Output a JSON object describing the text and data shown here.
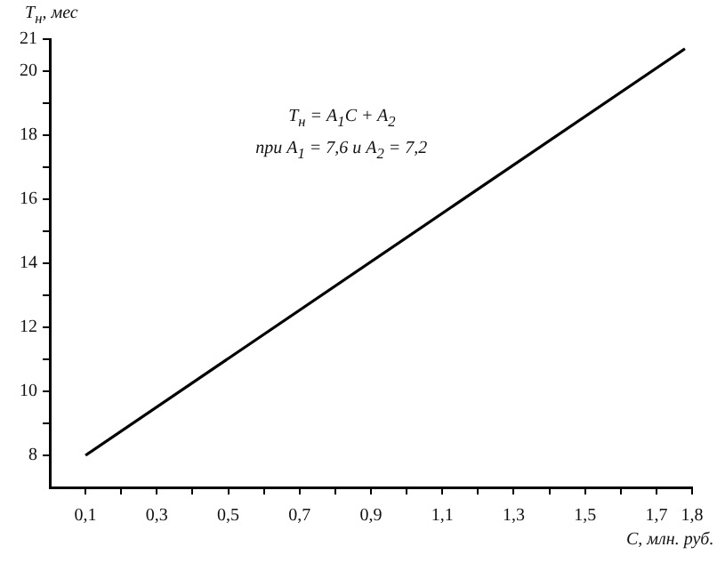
{
  "chart_data": {
    "type": "line",
    "xlabel": "C, млн. руб.",
    "ylabel": "T$_{н}$, мес",
    "annotations": [
      "T$_{н}$ = A$_{1}$C + A$_{2}$",
      "при A$_{1}$ = 7,6 и A$_{2}$ = 7,2"
    ],
    "series": [
      {
        "color": "#000000",
        "x": [
          0.1,
          1.78
        ],
        "values": [
          8,
          20.7
        ]
      }
    ],
    "xlim": [
      0,
      1.8
    ],
    "xticks": [
      {
        "value": 0.1,
        "label": "0,1"
      },
      {
        "value": 0.2,
        "label": null
      },
      {
        "value": 0.3,
        "label": "0,3"
      },
      {
        "value": 0.4,
        "label": null
      },
      {
        "value": 0.5,
        "label": "0,5"
      },
      {
        "value": 0.6,
        "label": null
      },
      {
        "value": 0.7,
        "label": "0,7"
      },
      {
        "value": 0.8,
        "label": null
      },
      {
        "value": 0.9,
        "label": "0,9"
      },
      {
        "value": 1.0,
        "label": null
      },
      {
        "value": 1.1,
        "label": "1,1"
      },
      {
        "value": 1.2,
        "label": null
      },
      {
        "value": 1.3,
        "label": "1,3"
      },
      {
        "value": 1.4,
        "label": null
      },
      {
        "value": 1.5,
        "label": "1,5"
      },
      {
        "value": 1.6,
        "label": null
      },
      {
        "value": 1.7,
        "label": "1,7"
      },
      {
        "value": 1.8,
        "label": "1,8"
      }
    ],
    "ylim": [
      7,
      21
    ],
    "yticks": [
      8,
      {
        "value": 9,
        "label": null
      },
      10,
      {
        "value": 11,
        "label": null
      },
      12,
      {
        "value": 13,
        "label": null
      },
      14,
      {
        "value": 15,
        "label": null
      },
      16,
      {
        "value": 17,
        "label": null
      },
      18,
      {
        "value": 19,
        "label": null
      },
      20,
      21
    ],
    "grid": false,
    "legend": false,
    "marker": "none",
    "line_style": "solid"
  }
}
